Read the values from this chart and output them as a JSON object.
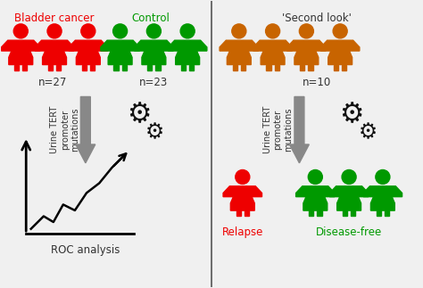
{
  "bg_color": "#f0f0f0",
  "left_panel": {
    "bladder_cancer_label": "Bladder cancer",
    "bladder_cancer_color": "#ee0000",
    "bladder_cancer_n": "n=27",
    "bladder_cancer_count": 3,
    "control_label": "Control",
    "control_color": "#009900",
    "control_n": "n=23",
    "control_count": 3,
    "arrow_label": "Urine TERT\npromoter\nmutations",
    "output_label": "ROC analysis"
  },
  "right_panel": {
    "second_look_label": "'Second look'",
    "second_look_color": "#c86400",
    "second_look_n": "n=10",
    "second_look_count": 4,
    "relapse_label": "Relapse",
    "relapse_color": "#ee0000",
    "relapse_count": 1,
    "disease_free_label": "Disease-free",
    "disease_free_color": "#009900",
    "disease_free_count": 3,
    "arrow_label": "Urine TERT\npromoter\nmutations"
  },
  "divider_color": "#555555",
  "arrow_color": "#888888",
  "gear_color": "#111111",
  "text_color": "#333333",
  "title_fontsize": 8.5,
  "label_fontsize": 8.5,
  "n_fontsize": 8.5
}
